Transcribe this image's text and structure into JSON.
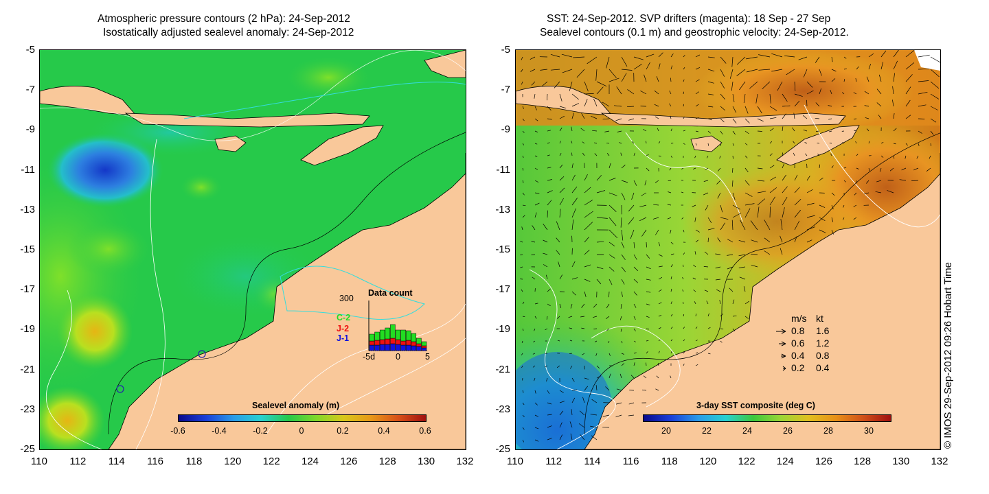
{
  "left_panel": {
    "title_line1": "Atmospheric pressure contours (2 hPa): 24-Sep-2012",
    "title_line2": "Isostatically adjusted sealevel anomaly: 24-Sep-2012",
    "colorbar_title": "Sealevel anomaly (m)",
    "colorbar_ticks": [
      "-0.6",
      "-0.4",
      "-0.2",
      "0",
      "0.2",
      "0.4",
      "0.6"
    ],
    "histogram": {
      "title": "Data count",
      "ymax_label": "300",
      "series_labels": [
        "C-2",
        "J-2",
        "J-1"
      ],
      "series_colors": [
        "#22dd22",
        "#ee1111",
        "#1111dd"
      ],
      "x_ticks": [
        "-5d",
        "0",
        "5"
      ]
    }
  },
  "right_panel": {
    "title_line1": "SST: 24-Sep-2012. SVP drifters (magenta): 18 Sep - 27 Sep",
    "title_line2": "Sealevel contours (0.1 m) and geostrophic velocity: 24-Sep-2012.",
    "colorbar_title": "3-day SST composite (deg C)",
    "colorbar_ticks": [
      "20",
      "22",
      "24",
      "26",
      "28",
      "30"
    ],
    "velocity_legend": {
      "header_ms": "m/s",
      "header_kt": "kt",
      "rows": [
        {
          "ms": "0.8",
          "kt": "1.6"
        },
        {
          "ms": "0.6",
          "kt": "1.2"
        },
        {
          "ms": "0.4",
          "kt": "0.8"
        },
        {
          "ms": "0.2",
          "kt": "0.4"
        }
      ]
    }
  },
  "axes": {
    "y_ticks": [
      "-5",
      "-7",
      "-9",
      "-11",
      "-13",
      "-15",
      "-17",
      "-19",
      "-21",
      "-23",
      "-25"
    ],
    "x_ticks": [
      "110",
      "112",
      "114",
      "116",
      "118",
      "120",
      "122",
      "124",
      "126",
      "128",
      "130",
      "132"
    ]
  },
  "copyright": "© IMOS 29-Sep-2012 09:26 Hobart Time",
  "colors": {
    "land": "#f9c89a",
    "ocean_green": "#22cc44",
    "sla_blue": "#1f55d6",
    "sst_orange": "#e48a1c"
  }
}
